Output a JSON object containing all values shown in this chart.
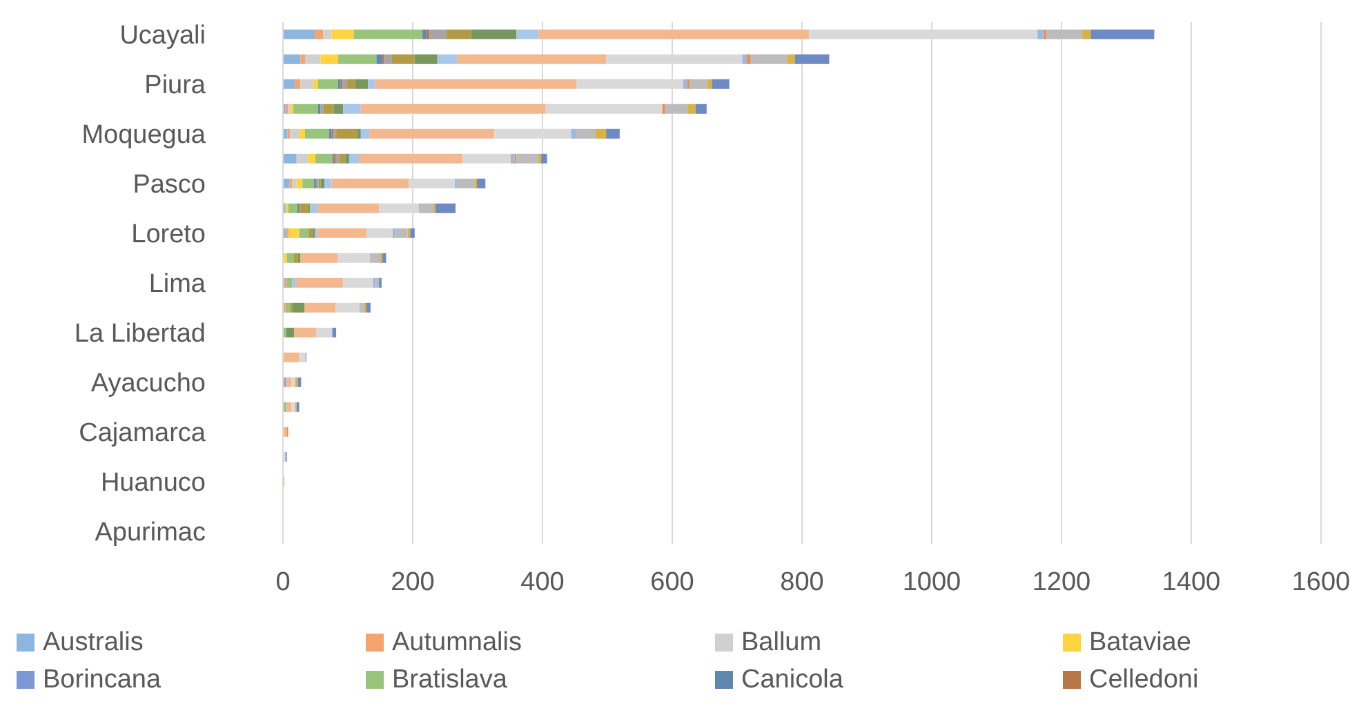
{
  "chart_data": {
    "type": "bar",
    "orientation": "horizontal",
    "stacked": true,
    "legend": "bottom",
    "grid": "x",
    "categories": [
      "Ucayali",
      null,
      "Piura",
      null,
      "Moquegua",
      null,
      "Pasco",
      null,
      "Loreto",
      null,
      "Lima",
      null,
      "La Libertad",
      null,
      "Ayacucho",
      null,
      "Cajamarca",
      null,
      "Huanuco",
      null,
      "Apurimac"
    ],
    "xlim": [
      0,
      1600
    ],
    "xticks": [
      0,
      200,
      400,
      600,
      800,
      1000,
      1200,
      1400,
      1600
    ],
    "series": [
      {
        "name": "Australis",
        "color": "#8cb6e0",
        "values": [
          49,
          27,
          18,
          4,
          7,
          21,
          10,
          4,
          5,
          null,
          3,
          null,
          null,
          null,
          null,
          null,
          null,
          null,
          null,
          null,
          null
        ]
      },
      {
        "name": "Autumnalis",
        "color": "#f4a46c",
        "values": [
          13,
          7,
          9,
          4,
          4,
          null,
          4,
          null,
          4,
          null,
          3,
          4,
          null,
          null,
          null,
          null,
          null,
          null,
          null,
          null,
          null
        ]
      },
      {
        "name": "Ballum",
        "color": "#d0d0d0",
        "values": [
          13,
          24,
          20,
          4,
          14,
          18,
          7,
          null,
          null,
          null,
          null,
          null,
          null,
          null,
          null,
          null,
          null,
          null,
          null,
          null,
          null
        ]
      },
      {
        "name": "Bataviae",
        "color": "#ffd43f",
        "values": [
          34,
          27,
          7,
          4,
          9,
          11,
          9,
          4,
          16,
          6,
          null,
          null,
          null,
          null,
          null,
          null,
          null,
          null,
          null,
          null,
          null
        ]
      },
      {
        "name": "Borincana",
        "color": "#7b98d4",
        "values": [
          null,
          null,
          null,
          null,
          null,
          null,
          null,
          null,
          null,
          null,
          null,
          null,
          null,
          null,
          null,
          null,
          null,
          null,
          null,
          null,
          null
        ]
      },
      {
        "name": "Bratislava",
        "color": "#99c47c",
        "values": [
          106,
          59,
          31,
          38,
          37,
          26,
          18,
          14,
          14,
          11,
          8,
          7,
          5,
          null,
          null,
          5,
          null,
          null,
          null,
          null,
          null
        ]
      },
      {
        "name": "Canicola",
        "color": "#5e88b0",
        "values": [
          7,
          9,
          4,
          4,
          4,
          2,
          3,
          3,
          null,
          null,
          null,
          null,
          null,
          null,
          null,
          null,
          null,
          null,
          null,
          null,
          null
        ]
      },
      {
        "name": "Celledoni",
        "color": "#b87548",
        "values": [
          4,
          3,
          3,
          null,
          3,
          3,
          null,
          null,
          null,
          null,
          null,
          null,
          null,
          null,
          null,
          null,
          null,
          null,
          null,
          null,
          null
        ]
      },
      {
        "color": "#a5a5a5",
        "values": [
          26,
          12,
          7,
          4,
          4,
          6,
          4,
          null,
          null,
          null,
          null,
          null,
          null,
          null,
          5,
          null,
          null,
          null,
          null,
          null,
          null
        ]
      },
      {
        "color": "#b39b45",
        "values": [
          38,
          35,
          12,
          16,
          32,
          9,
          3,
          14,
          6,
          6,
          null,
          4,
          null,
          null,
          null,
          null,
          null,
          null,
          null,
          null,
          null
        ]
      },
      {
        "color": "#78975e",
        "values": [
          70,
          35,
          20,
          15,
          6,
          6,
          6,
          3,
          4,
          4,
          null,
          18,
          12,
          null,
          null,
          null,
          null,
          null,
          null,
          null,
          null
        ]
      },
      {
        "color": "#a9c7ea",
        "values": [
          34,
          30,
          11,
          27,
          13,
          15,
          11,
          11,
          4,
          null,
          6,
          null,
          null,
          null,
          null,
          null,
          null,
          null,
          null,
          null,
          null
        ]
      },
      {
        "color": "#f4b88f",
        "values": [
          417,
          230,
          310,
          285,
          193,
          160,
          119,
          95,
          76,
          57,
          73,
          48,
          34,
          25,
          8,
          8,
          6,
          null,
          null,
          null,
          null
        ]
      },
      {
        "color": "#d9d9d9",
        "values": [
          352,
          210,
          165,
          180,
          118,
          74,
          71,
          61,
          40,
          50,
          46,
          37,
          25,
          10,
          6,
          6,
          null,
          4,
          null,
          null,
          null
        ]
      },
      {
        "color": "#9bb8e0",
        "values": [
          10,
          7,
          6,
          null,
          8,
          6,
          3,
          null,
          4,
          null,
          4,
          2,
          null,
          null,
          null,
          null,
          null,
          null,
          null,
          null,
          null
        ]
      },
      {
        "color": "#ee8b4e",
        "values": [
          4,
          6,
          4,
          4,
          null,
          3,
          null,
          null,
          null,
          null,
          null,
          null,
          null,
          null,
          null,
          null,
          2,
          null,
          null,
          null,
          null
        ]
      },
      {
        "color": "#bcbcbc",
        "values": [
          55,
          56,
          27,
          34,
          30,
          33,
          27,
          23,
          19,
          16,
          5,
          4,
          null,
          null,
          null,
          null,
          null,
          null,
          null,
          null,
          null
        ]
      },
      {
        "color": "#d8b243",
        "values": [
          13,
          12,
          7,
          13,
          16,
          5,
          4,
          3,
          4,
          3,
          null,
          4,
          null,
          null,
          4,
          2,
          null,
          null,
          2,
          null,
          null
        ]
      },
      {
        "color": "#6d8ac4",
        "values": [
          98,
          53,
          27,
          17,
          21,
          9,
          13,
          31,
          7,
          6,
          4,
          7,
          6,
          1,
          5,
          4,
          null,
          2,
          null,
          null,
          null
        ]
      }
    ]
  }
}
